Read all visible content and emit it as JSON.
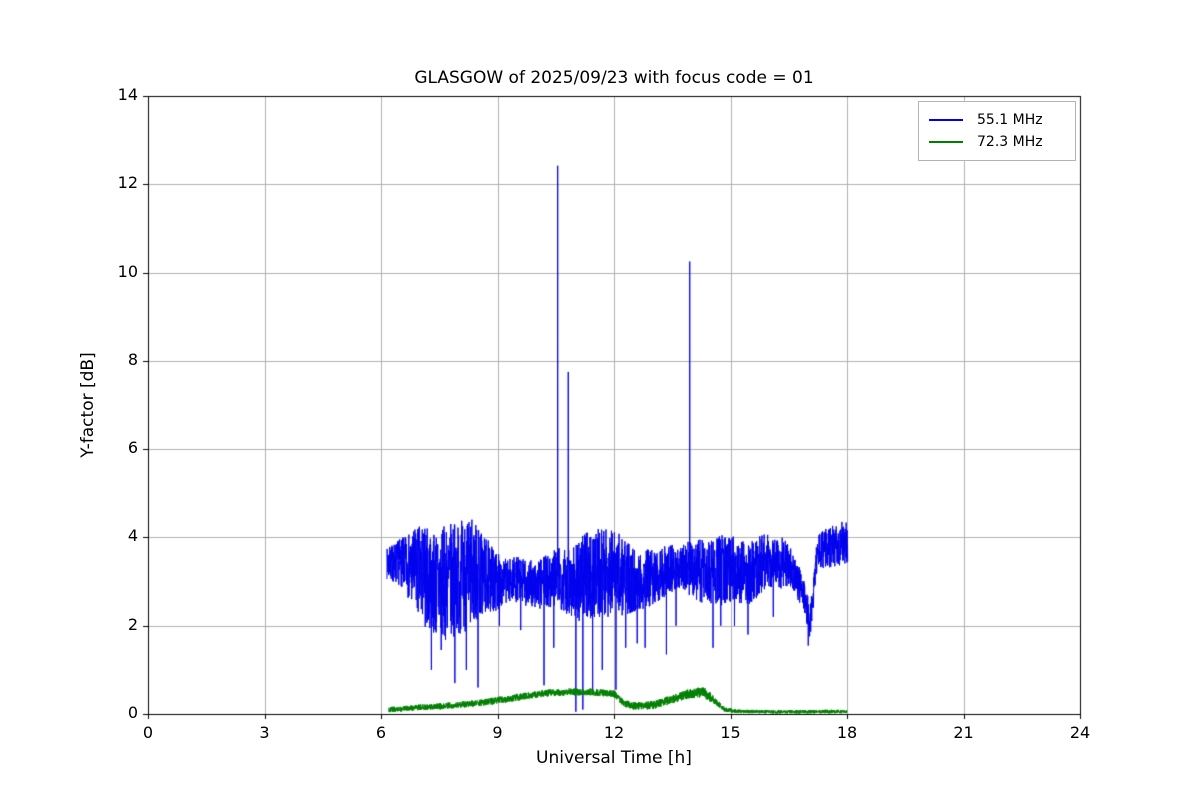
{
  "page": {
    "background": "#ffffff"
  },
  "chart_data": {
    "type": "line",
    "title": "GLASGOW of 2025/09/23 with focus code = 01",
    "xlabel": "Universal Time [h]",
    "ylabel": "Y-factor [dB]",
    "xlim": [
      0,
      24
    ],
    "ylim": [
      0,
      14
    ],
    "xticks": [
      0,
      3,
      6,
      9,
      12,
      15,
      18,
      21,
      24
    ],
    "yticks": [
      0,
      2,
      4,
      6,
      8,
      10,
      12,
      14
    ],
    "grid": true,
    "grid_color": "#b0b0b0",
    "axis_color": "#000000",
    "legend": {
      "position": "upper right",
      "entries": [
        {
          "label": "55.1 MHz",
          "color": "#0000ee"
        },
        {
          "label": "72.3 MHz",
          "color": "#008000"
        }
      ]
    },
    "noise_seed": 7,
    "series": [
      {
        "name": "55.1 MHz",
        "color": "#0000ee",
        "x_start": 6.15,
        "x_end": 18.02,
        "sample_step": 0.004,
        "baseline": [
          [
            6.15,
            3.4
          ],
          [
            6.5,
            3.45
          ],
          [
            7.0,
            3.2
          ],
          [
            7.5,
            2.9
          ],
          [
            8.0,
            3.1
          ],
          [
            8.5,
            3.2
          ],
          [
            9.0,
            3.0
          ],
          [
            9.5,
            3.05
          ],
          [
            10.0,
            2.9
          ],
          [
            10.5,
            3.1
          ],
          [
            11.0,
            3.0
          ],
          [
            11.5,
            3.2
          ],
          [
            12.0,
            3.2
          ],
          [
            12.5,
            3.0
          ],
          [
            13.0,
            3.1
          ],
          [
            13.5,
            3.3
          ],
          [
            14.0,
            3.3
          ],
          [
            14.5,
            3.2
          ],
          [
            15.0,
            3.3
          ],
          [
            15.5,
            3.2
          ],
          [
            16.0,
            3.5
          ],
          [
            16.5,
            3.4
          ],
          [
            16.85,
            2.8
          ],
          [
            17.05,
            2.1
          ],
          [
            17.25,
            3.7
          ],
          [
            17.6,
            3.8
          ],
          [
            18.0,
            3.9
          ]
        ],
        "amplitude": [
          [
            6.15,
            0.35
          ],
          [
            6.6,
            0.6
          ],
          [
            7.0,
            1.1
          ],
          [
            7.6,
            1.3
          ],
          [
            8.3,
            1.3
          ],
          [
            8.8,
            0.8
          ],
          [
            9.2,
            0.5
          ],
          [
            10.0,
            0.55
          ],
          [
            10.6,
            0.7
          ],
          [
            11.2,
            1.0
          ],
          [
            12.0,
            1.0
          ],
          [
            12.6,
            0.7
          ],
          [
            13.2,
            0.6
          ],
          [
            13.7,
            0.5
          ],
          [
            14.1,
            0.7
          ],
          [
            14.8,
            0.8
          ],
          [
            15.6,
            0.7
          ],
          [
            16.3,
            0.6
          ],
          [
            16.9,
            0.35
          ],
          [
            17.3,
            0.45
          ],
          [
            18.0,
            0.5
          ]
        ],
        "spikes": [
          [
            10.55,
            12.42
          ],
          [
            10.82,
            7.75
          ],
          [
            13.95,
            10.25
          ]
        ],
        "dips": [
          [
            7.3,
            1.0
          ],
          [
            7.55,
            1.45
          ],
          [
            7.9,
            0.7
          ],
          [
            8.2,
            1.0
          ],
          [
            8.5,
            0.6
          ],
          [
            9.05,
            2.0
          ],
          [
            9.6,
            1.9
          ],
          [
            10.2,
            0.65
          ],
          [
            10.45,
            1.5
          ],
          [
            11.02,
            0.05
          ],
          [
            11.2,
            0.1
          ],
          [
            11.45,
            0.55
          ],
          [
            11.7,
            1.0
          ],
          [
            12.05,
            0.55
          ],
          [
            12.3,
            1.5
          ],
          [
            12.6,
            1.6
          ],
          [
            12.8,
            1.5
          ],
          [
            13.35,
            1.35
          ],
          [
            13.6,
            2.0
          ],
          [
            14.55,
            1.5
          ],
          [
            14.75,
            2.0
          ],
          [
            15.1,
            2.0
          ],
          [
            15.45,
            1.8
          ],
          [
            16.1,
            2.2
          ],
          [
            17.0,
            1.55
          ]
        ]
      },
      {
        "name": "72.3 MHz",
        "color": "#008000",
        "x_start": 6.2,
        "x_end": 18.0,
        "sample_step": 0.004,
        "baseline": [
          [
            6.2,
            0.1
          ],
          [
            6.6,
            0.12
          ],
          [
            7.0,
            0.15
          ],
          [
            7.6,
            0.18
          ],
          [
            8.2,
            0.22
          ],
          [
            8.8,
            0.28
          ],
          [
            9.3,
            0.35
          ],
          [
            9.8,
            0.42
          ],
          [
            10.2,
            0.47
          ],
          [
            10.8,
            0.5
          ],
          [
            11.4,
            0.5
          ],
          [
            12.0,
            0.46
          ],
          [
            12.25,
            0.25
          ],
          [
            12.5,
            0.18
          ],
          [
            13.0,
            0.2
          ],
          [
            13.5,
            0.33
          ],
          [
            13.9,
            0.45
          ],
          [
            14.3,
            0.5
          ],
          [
            14.6,
            0.3
          ],
          [
            14.85,
            0.1
          ],
          [
            15.2,
            0.06
          ],
          [
            16.0,
            0.05
          ],
          [
            17.0,
            0.05
          ],
          [
            18.0,
            0.06
          ]
        ],
        "amplitude": [
          [
            6.2,
            0.06
          ],
          [
            9.0,
            0.08
          ],
          [
            12.0,
            0.08
          ],
          [
            13.6,
            0.1
          ],
          [
            14.4,
            0.12
          ],
          [
            14.8,
            0.05
          ],
          [
            15.3,
            0.04
          ],
          [
            18.0,
            0.04
          ]
        ],
        "spikes": [],
        "dips": []
      }
    ]
  }
}
